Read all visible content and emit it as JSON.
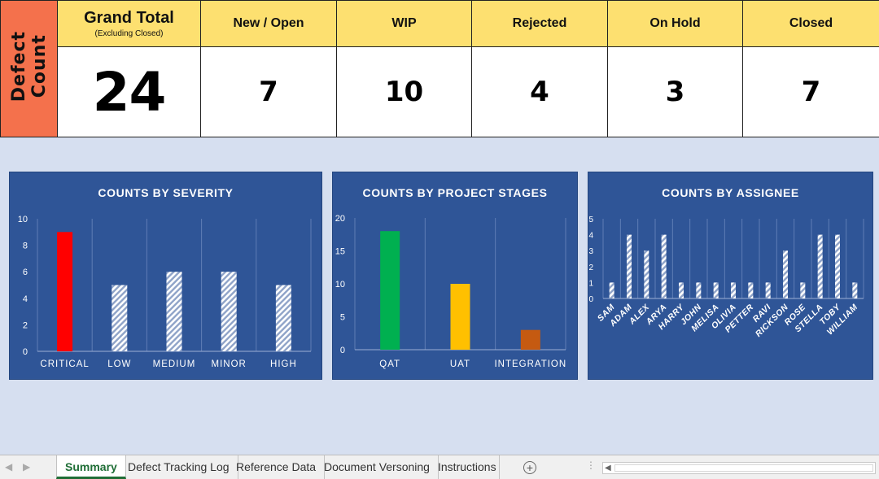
{
  "summary": {
    "side_label": "Defect\nCount",
    "grand_total": {
      "label": "Grand Total",
      "sublabel": "(Excluding Closed)",
      "value": "24"
    },
    "statuses": [
      {
        "label": "New / Open",
        "value": "7"
      },
      {
        "label": "WIP",
        "value": "10"
      },
      {
        "label": "Rejected",
        "value": "4"
      },
      {
        "label": "On Hold",
        "value": "3"
      },
      {
        "label": "Closed",
        "value": "7"
      }
    ]
  },
  "chart_data": [
    {
      "type": "bar",
      "title": "COUNTS BY SEVERITY",
      "categories": [
        "CRITICAL",
        "LOW",
        "MEDIUM",
        "MINOR",
        "HIGH"
      ],
      "values": [
        9,
        5,
        6,
        6,
        5
      ],
      "colors": [
        "#ff0000",
        "hatch",
        "hatch",
        "hatch",
        "hatch"
      ],
      "ylim": [
        0,
        10
      ],
      "yticks": [
        0,
        2,
        4,
        6,
        8,
        10
      ],
      "grid": "vertical category separators"
    },
    {
      "type": "bar",
      "title": "COUNTS BY PROJECT STAGES",
      "categories": [
        "QAT",
        "UAT",
        "INTEGRATION"
      ],
      "values": [
        18,
        10,
        3
      ],
      "colors": [
        "#00b050",
        "#ffc000",
        "#c55a11"
      ],
      "ylim": [
        0,
        20
      ],
      "yticks": [
        0,
        5,
        10,
        15,
        20
      ],
      "grid": "vertical category separators"
    },
    {
      "type": "bar",
      "title": "COUNTS BY ASSIGNEE",
      "categories": [
        "SAM",
        "ADAM",
        "ALEX",
        "ARYA",
        "HARRY",
        "JOHN",
        "MELISA",
        "OLIVIA",
        "PETTER",
        "RAVI",
        "RICKSON",
        "ROSE",
        "STELLA",
        "TOBY",
        "WILLIAM"
      ],
      "values": [
        1,
        4,
        3,
        4,
        1,
        1,
        1,
        1,
        1,
        1,
        3,
        1,
        4,
        4,
        1
      ],
      "colors": [
        "hatch"
      ],
      "ylim": [
        0,
        5
      ],
      "yticks": [
        0,
        1,
        2,
        3,
        4,
        5
      ],
      "grid": "vertical category separators"
    }
  ],
  "sheet_tabs": {
    "tabs": [
      "Summary",
      "Defect Tracking Log",
      "Reference Data",
      "Document Versoning",
      "Instructions"
    ],
    "active": "Summary"
  },
  "colors": {
    "header_fill": "#fde070",
    "side_fill": "#f4714c",
    "chart_bg": "#2f5597",
    "page_bg": "#d6dff0"
  }
}
